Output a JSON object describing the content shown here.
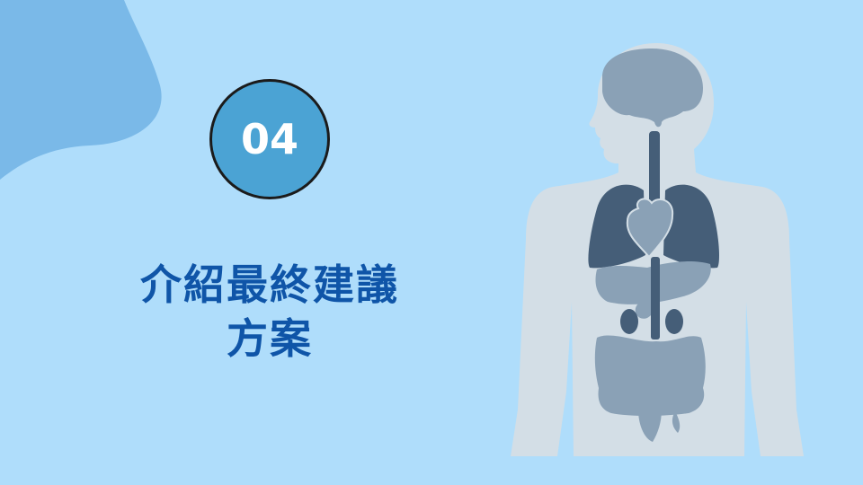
{
  "section": {
    "number": "04",
    "title_line1": "介紹最終建議",
    "title_line2": "方案"
  },
  "colors": {
    "background": "#afddfb",
    "corner_blob": "#7ab9e8",
    "badge_fill": "#4ba3d4",
    "title_text": "#0f55a8",
    "body_silhouette": "#d3dee6",
    "organ_dark": "#455e78",
    "organ_light": "#8aa1b6"
  },
  "illustration": {
    "icon": "human-anatomy-icon"
  }
}
